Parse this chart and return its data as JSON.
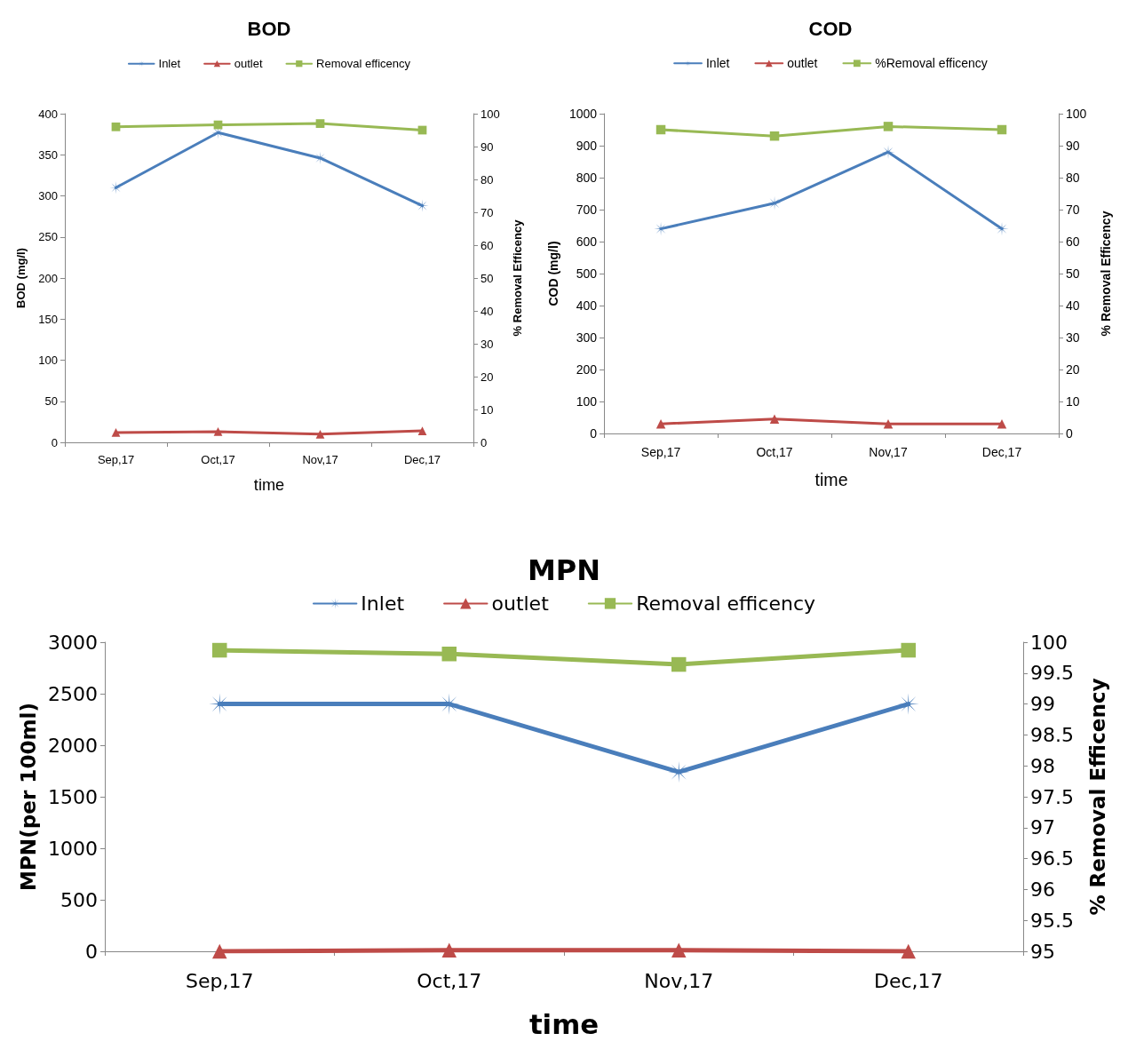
{
  "chart_data": [
    {
      "type": "line",
      "title": "BOD",
      "categories": [
        "Sep,17",
        "Oct,17",
        "Nov,17",
        "Dec,17"
      ],
      "xlabel": "time",
      "ylabel": "BOD (mg/l)",
      "y2label": "% Removal Efficency",
      "ylim": [
        0,
        400
      ],
      "yticks": [
        0,
        50,
        100,
        150,
        200,
        250,
        300,
        350,
        400
      ],
      "y2lim": [
        0,
        100
      ],
      "y2ticks": [
        0,
        10,
        20,
        30,
        40,
        50,
        60,
        70,
        80,
        90,
        100
      ],
      "legend": "top",
      "series": [
        {
          "name": "Inlet",
          "color": "#4a7ebb",
          "values": [
            310,
            377,
            346,
            288
          ],
          "marker": "cross"
        },
        {
          "name": "outlet",
          "color": "#be4b48",
          "values": [
            12,
            13,
            10,
            14
          ],
          "marker": "triangle"
        },
        {
          "name": "Removal efficency",
          "color": "#98b954",
          "values": [
            96,
            96.6,
            97,
            95
          ],
          "marker": "square",
          "axis": "y2"
        }
      ]
    },
    {
      "type": "line",
      "title": "COD",
      "categories": [
        "Sep,17",
        "Oct,17",
        "Nov,17",
        "Dec,17"
      ],
      "xlabel": "time",
      "ylabel": "COD (mg/l)",
      "y2label": "% Removal Efficency",
      "ylim": [
        0,
        1000
      ],
      "yticks": [
        0,
        100,
        200,
        300,
        400,
        500,
        600,
        700,
        800,
        900,
        1000
      ],
      "y2lim": [
        0,
        100
      ],
      "y2ticks": [
        0,
        10,
        20,
        30,
        40,
        50,
        60,
        70,
        80,
        90,
        100
      ],
      "legend": "top",
      "series": [
        {
          "name": "Inlet",
          "color": "#4a7ebb",
          "values": [
            640,
            720,
            880,
            640
          ],
          "marker": "cross"
        },
        {
          "name": "outlet",
          "color": "#be4b48",
          "values": [
            30,
            45,
            30,
            30
          ],
          "marker": "triangle"
        },
        {
          "name": "%Removal efficency",
          "color": "#98b954",
          "values": [
            95,
            93,
            96,
            95
          ],
          "marker": "square",
          "axis": "y2"
        }
      ]
    },
    {
      "type": "line",
      "title": "MPN",
      "categories": [
        "Sep,17",
        "Oct,17",
        "Nov,17",
        "Dec,17"
      ],
      "xlabel": "time",
      "ylabel": "MPN(per 100ml)",
      "y2label": "% Removal Efficency",
      "ylim": [
        0,
        3000
      ],
      "yticks": [
        0,
        500,
        1000,
        1500,
        2000,
        2500,
        3000
      ],
      "y2lim": [
        95,
        100
      ],
      "y2ticks": [
        95,
        95.5,
        96,
        96.5,
        97,
        97.5,
        98,
        98.5,
        99,
        99.5,
        100
      ],
      "legend": "top",
      "series": [
        {
          "name": "Inlet",
          "color": "#4a7ebb",
          "values": [
            2400,
            2400,
            1740,
            2400
          ],
          "marker": "cross"
        },
        {
          "name": "outlet",
          "color": "#be4b48",
          "values": [
            0,
            10,
            10,
            0
          ],
          "marker": "triangle"
        },
        {
          "name": "Removal efficency",
          "color": "#98b954",
          "values": [
            99.87,
            99.81,
            99.64,
            99.87
          ],
          "marker": "square",
          "axis": "y2"
        }
      ]
    }
  ]
}
